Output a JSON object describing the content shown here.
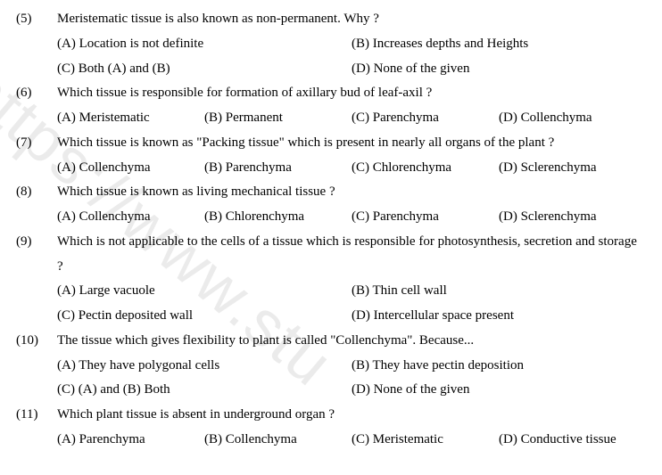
{
  "watermark": "https://www.stu",
  "questions": [
    {
      "num": "(5)",
      "text": "Meristematic tissue is also known as non-permanent. Why ?",
      "layout": "two",
      "rows": [
        [
          "(A) Location is not definite",
          "(B) Increases depths and Heights"
        ],
        [
          "(C) Both (A) and (B)",
          "(D) None of the given"
        ]
      ]
    },
    {
      "num": "(6)",
      "text": "Which tissue is responsible for formation of axillary bud of leaf-axil ?",
      "layout": "four",
      "rows": [
        [
          "(A) Meristematic",
          "(B) Permanent",
          "(C) Parenchyma",
          "(D) Collenchyma"
        ]
      ]
    },
    {
      "num": "(7)",
      "text": "Which tissue is known as \"Packing tissue\" which is present in nearly all organs of the plant ?",
      "layout": "four",
      "rows": [
        [
          "(A) Collenchyma",
          "(B) Parenchyma",
          "(C) Chlorenchyma",
          "(D) Sclerenchyma"
        ]
      ]
    },
    {
      "num": "(8)",
      "text": "Which tissue is known as living mechanical tissue ?",
      "layout": "four",
      "rows": [
        [
          "(A) Collenchyma",
          "(B) Chlorenchyma",
          "(C) Parenchyma",
          "(D) Sclerenchyma"
        ]
      ]
    },
    {
      "num": "(9)",
      "text": "Which is not applicable to the cells of a tissue which is responsible for photosynthesis, secretion and storage ?",
      "layout": "two",
      "rows": [
        [
          "(A) Large vacuole",
          "(B) Thin cell wall"
        ],
        [
          "(C) Pectin deposited wall",
          "(D) Intercellular space present"
        ]
      ]
    },
    {
      "num": "(10)",
      "text": "The tissue which gives flexibility to plant is called \"Collenchyma\". Because...",
      "layout": "two",
      "rows": [
        [
          "(A) They have polygonal cells",
          "(B) They have pectin deposition"
        ],
        [
          "(C) (A) and (B) Both",
          "(D) None of the given"
        ]
      ]
    },
    {
      "num": "(11)",
      "text": "Which plant tissue is absent in underground organ ?",
      "layout": "four",
      "rows": [
        [
          "(A) Parenchyma",
          "(B) Collenchyma",
          "(C) Meristematic",
          "(D) Conductive tissue"
        ]
      ]
    }
  ]
}
